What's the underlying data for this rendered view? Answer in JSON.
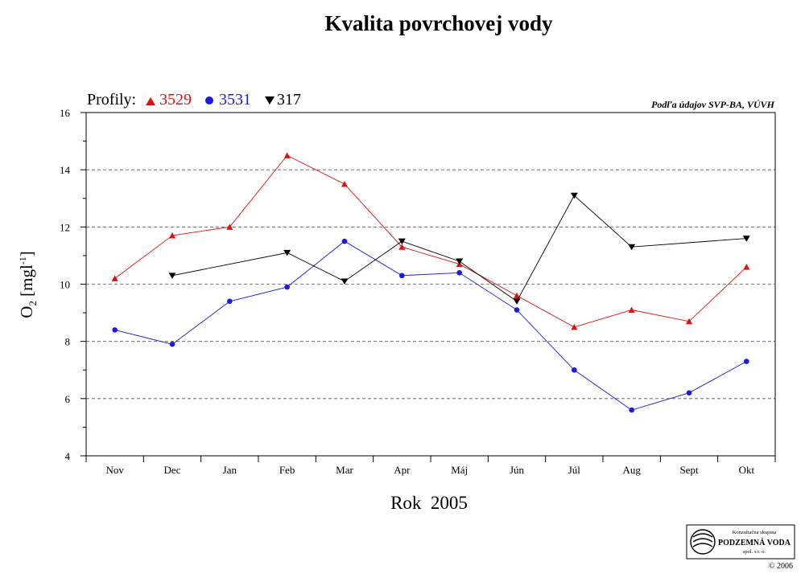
{
  "chart_data": {
    "type": "line",
    "title": "Kvalita povrchovej vody",
    "xlabel": "Rok  2005",
    "ylabel": "O",
    "ylabel_sub": "2",
    "ylabel_unit": " [mgl",
    "ylabel_sup": "-1",
    "ylabel_end": "]",
    "categories": [
      "Nov",
      "Dec",
      "Jan",
      "Feb",
      "Mar",
      "Apr",
      "Máj",
      "Jún",
      "Júl",
      "Aug",
      "Sept",
      "Okt"
    ],
    "ylim": [
      4,
      16
    ],
    "yticks": [
      4,
      6,
      8,
      10,
      12,
      14,
      16
    ],
    "grid": "horizontal-dashed",
    "legend_prefix": "Profily:",
    "legend_position": "top-left",
    "series": [
      {
        "name": "3529",
        "color": "#e01010",
        "marker": "triangle-up",
        "values": [
          10.2,
          11.7,
          12.0,
          14.5,
          13.5,
          11.3,
          10.7,
          9.6,
          8.5,
          9.1,
          8.7,
          10.6
        ]
      },
      {
        "name": "3531",
        "color": "#1a1ae0",
        "marker": "circle",
        "values": [
          8.4,
          7.9,
          9.4,
          9.9,
          11.5,
          10.3,
          10.4,
          9.1,
          7.0,
          5.6,
          6.2,
          7.3
        ]
      },
      {
        "name": "317",
        "color": "#000000",
        "marker": "triangle-down",
        "values": [
          null,
          10.3,
          null,
          11.1,
          10.1,
          11.5,
          10.8,
          9.4,
          13.1,
          11.3,
          null,
          11.6
        ]
      }
    ],
    "annotation": "Podľa údajov SVP-BA, VÚVH"
  },
  "logo": {
    "line1": "Konzultačná skupina",
    "line2": "PODZEMNÁ VODA",
    "line3": "spol. s r. o.",
    "copyright": "© 2006"
  }
}
